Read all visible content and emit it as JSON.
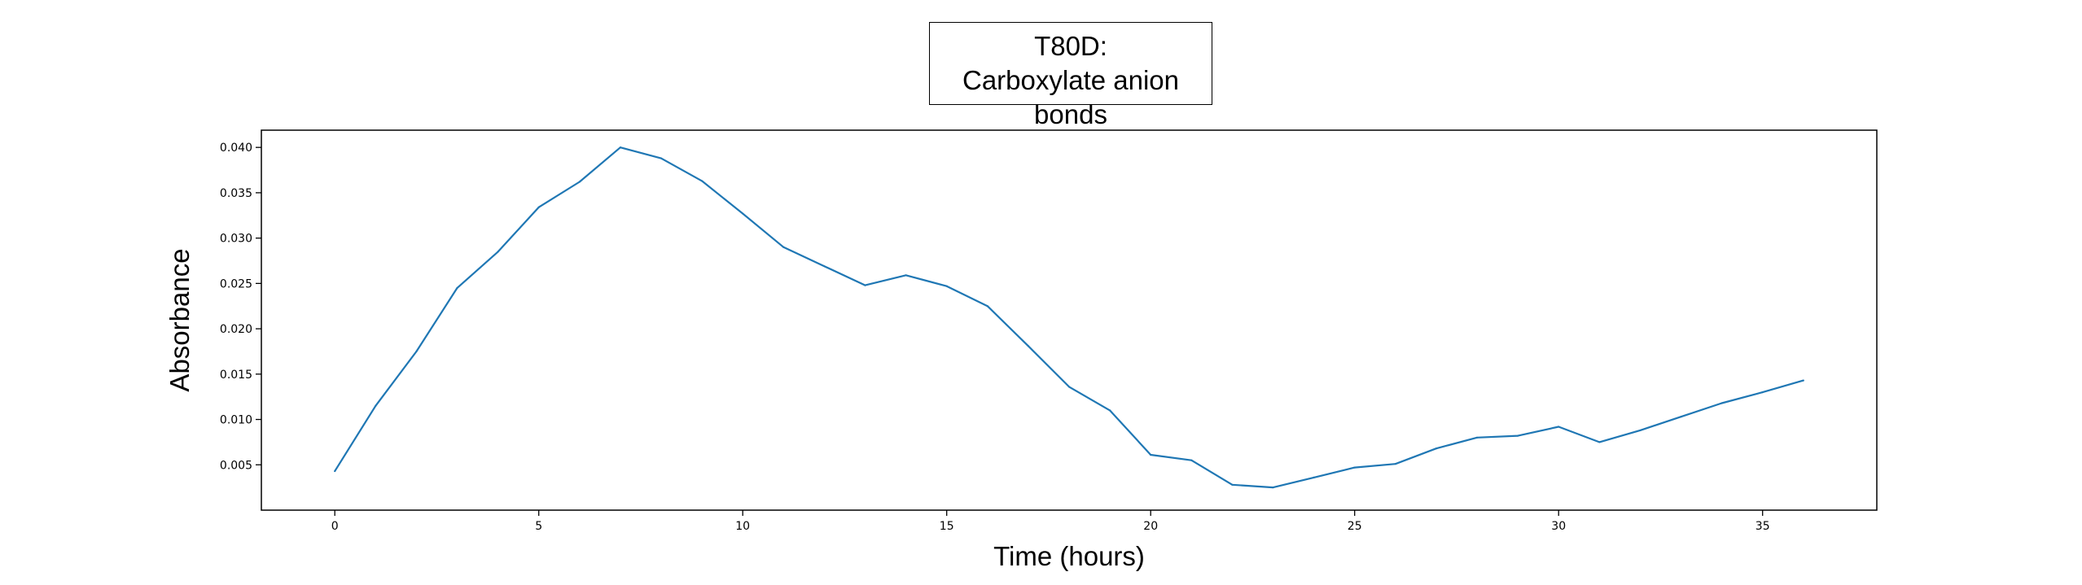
{
  "chart_data": {
    "type": "line",
    "title_line1": "T80D:",
    "title_line2": "Carboxylate anion bonds",
    "xlabel": "Time (hours)",
    "ylabel": "Absorbance",
    "xlim": [
      -1.8,
      37.8
    ],
    "ylim": [
      0.0,
      0.0419
    ],
    "xticks": [
      0,
      5,
      10,
      15,
      20,
      25,
      30,
      35
    ],
    "yticks": [
      0.005,
      0.01,
      0.015,
      0.02,
      0.025,
      0.03,
      0.035,
      0.04
    ],
    "ytick_labels": [
      "0.005",
      "0.010",
      "0.015",
      "0.020",
      "0.025",
      "0.030",
      "0.035",
      "0.040"
    ],
    "line_color": "#1f77b4",
    "grid": false,
    "x": [
      0,
      1,
      2,
      3,
      4,
      5,
      6,
      7,
      8,
      9,
      10,
      11,
      12,
      13,
      14,
      15,
      16,
      17,
      18,
      19,
      20,
      21,
      22,
      23,
      24,
      25,
      26,
      27,
      28,
      29,
      30,
      31,
      32,
      33,
      34,
      35,
      36
    ],
    "y": [
      0.0043,
      0.0115,
      0.0175,
      0.0245,
      0.0285,
      0.0334,
      0.0362,
      0.04,
      0.0388,
      0.0363,
      0.0327,
      0.029,
      0.0269,
      0.0248,
      0.0259,
      0.0247,
      0.0225,
      0.0181,
      0.0136,
      0.011,
      0.0061,
      0.0055,
      0.0028,
      0.0025,
      0.0036,
      0.0047,
      0.0051,
      0.0068,
      0.008,
      0.0082,
      0.0092,
      0.0075,
      0.0088,
      0.0103,
      0.0118,
      0.013,
      0.0143
    ]
  }
}
